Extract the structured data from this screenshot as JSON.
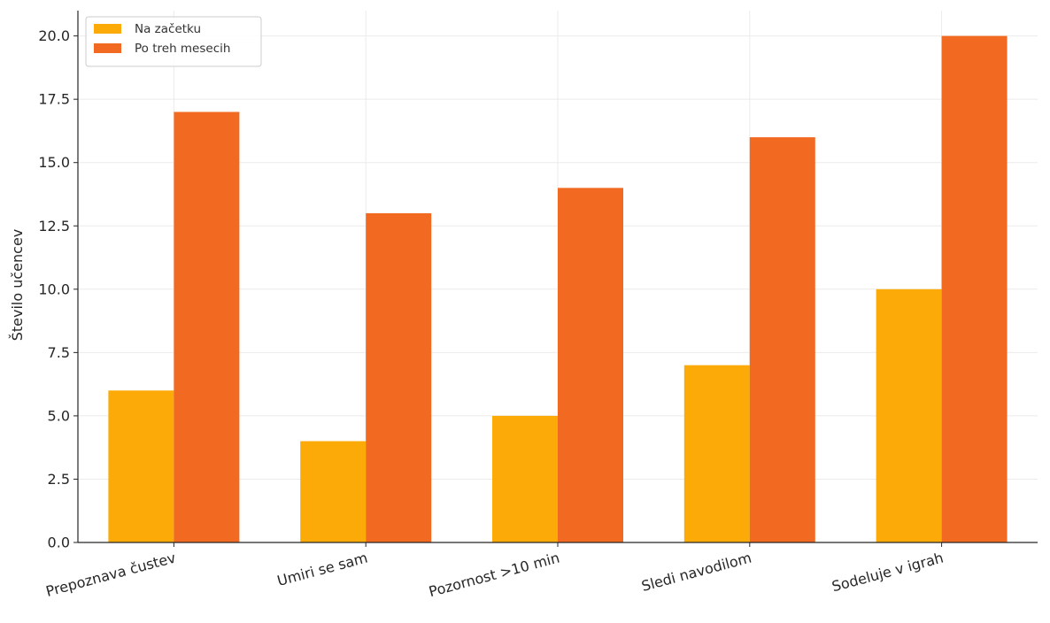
{
  "chart_data": {
    "type": "bar",
    "title": "",
    "xlabel": "",
    "ylabel": "Število učencev",
    "categories": [
      "Prepoznava čustev",
      "Umiri se sam",
      "Pozornost >10 min",
      "Sledi navodilom",
      "Sodeluje v igrah"
    ],
    "series": [
      {
        "name": "Na začetku",
        "values": [
          6,
          4,
          5,
          7,
          10
        ],
        "color": "#FBAA08"
      },
      {
        "name": "Po treh mesecih",
        "values": [
          17,
          13,
          14,
          16,
          20
        ],
        "color": "#F26A22"
      }
    ],
    "ylim": [
      0,
      21
    ],
    "yticks": [
      0.0,
      2.5,
      5.0,
      7.5,
      10.0,
      12.5,
      15.0,
      17.5,
      20.0
    ],
    "ytick_labels": [
      "0.0",
      "2.5",
      "5.0",
      "7.5",
      "10.0",
      "12.5",
      "15.0",
      "17.5",
      "20.0"
    ],
    "grid": true,
    "legend_position": "top-left"
  }
}
